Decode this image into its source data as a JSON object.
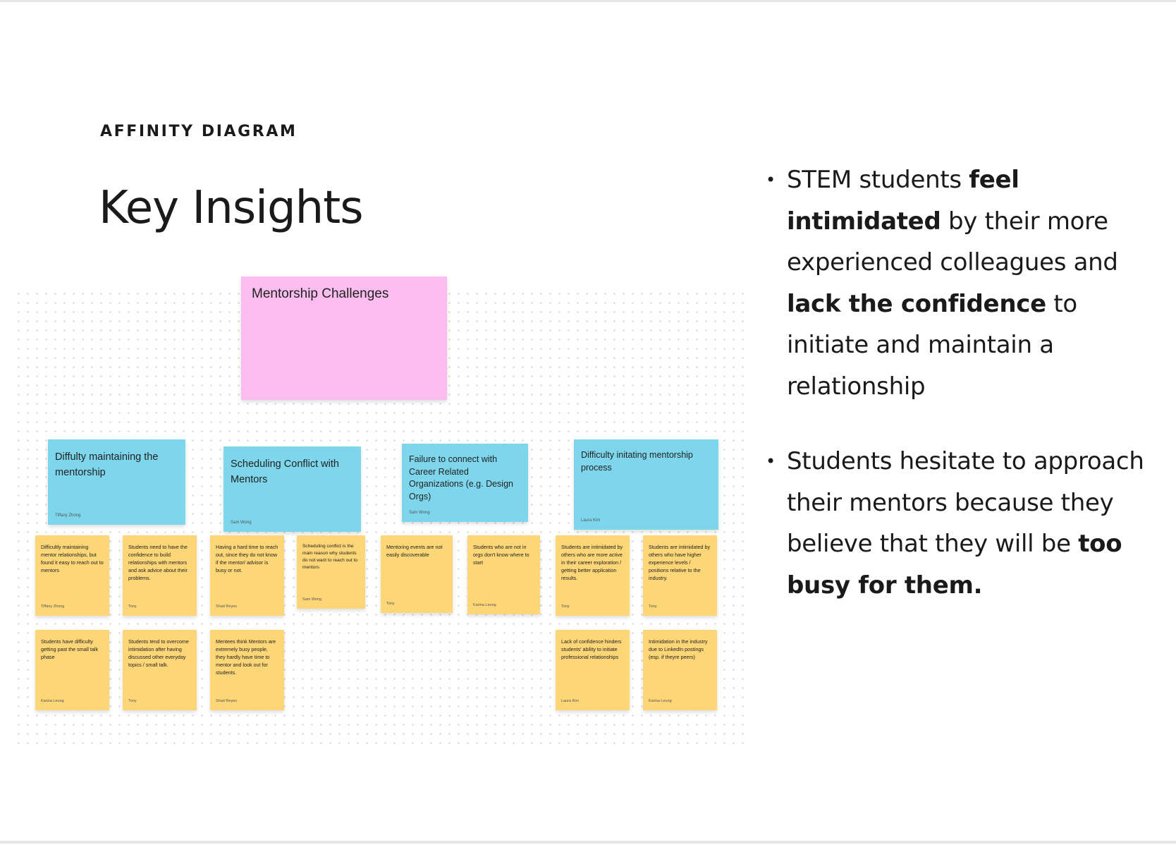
{
  "header": {
    "eyebrow": "AFFINITY DIAGRAM",
    "title": "Key Insights"
  },
  "diagram": {
    "root": "Mentorship Challenges",
    "categories": [
      {
        "label": "Diffulty maintaining the mentorship",
        "author": "Tiffany Zhong"
      },
      {
        "label": "Scheduling Conflict with Mentors",
        "author": "Sam Wong"
      },
      {
        "label": "Failure to connect with Career Related Organizations (e.g. Design Orgs)",
        "author": "Sam Wong"
      },
      {
        "label": "Difficulty initating mentorship process",
        "author": "Laura Kim"
      }
    ],
    "row1": [
      {
        "text": "Difficultly maintaining mentor relationships, but found it easy to reach out to mentors",
        "author": "Tiffany Zhong"
      },
      {
        "text": "Students need to have the confidence to build relationships with mentors and ask advice about their problems.",
        "author": "Tony"
      },
      {
        "text": "Having a hard time to reach out, since they do not know if the mentor/ advisor is busy or not.",
        "author": "Shad Reyes"
      },
      {
        "text": "Scheduling conflict is the main reason why students do not want to reach out to mentors",
        "author": "Sam Wong"
      },
      {
        "text": "Mentoring events are not easily discoverable",
        "author": "Tony"
      },
      {
        "text": "Students who are not in orgs don't know where to start",
        "author": "Karina Leung"
      },
      {
        "text": "Students are intimidated by others who are more active in their career exploration / getting better application results.",
        "author": "Tony"
      },
      {
        "text": "Students are intimidated by others who have higher experience levels / positions relative to the industry.",
        "author": "Tony"
      }
    ],
    "row2": [
      {
        "text": "Students have difficulty getting past the small talk phase",
        "author": "Karina Leung"
      },
      {
        "text": "Students tend to overcome intimidation after having discussed other everyday topics / small talk.",
        "author": "Tony"
      },
      {
        "text": "Mentees think Mentors are extremely busy people, they hardly have time to mentor and look out for students.",
        "author": "Shad Reyes"
      },
      {
        "text": "Lack of confidence hinders students' ability to initiate professional relationships",
        "author": "Laura Kim"
      },
      {
        "text": "Intimidation in the industry due to LinkedIn postings (esp. if theyre peers)",
        "author": "Karina Leung"
      }
    ]
  },
  "insights": [
    {
      "segments": [
        {
          "text": "STEM students ",
          "bold": false
        },
        {
          "text": "feel intimidated",
          "bold": true
        },
        {
          "text": " by their more experienced colleagues and ",
          "bold": false
        },
        {
          "text": "lack the confidence",
          "bold": true
        },
        {
          "text": " to initiate and maintain a relationship",
          "bold": false
        }
      ]
    },
    {
      "segments": [
        {
          "text": "Students hesitate to approach their mentors because they believe that they will be ",
          "bold": false
        },
        {
          "text": "too busy for them.",
          "bold": true
        }
      ]
    }
  ]
}
